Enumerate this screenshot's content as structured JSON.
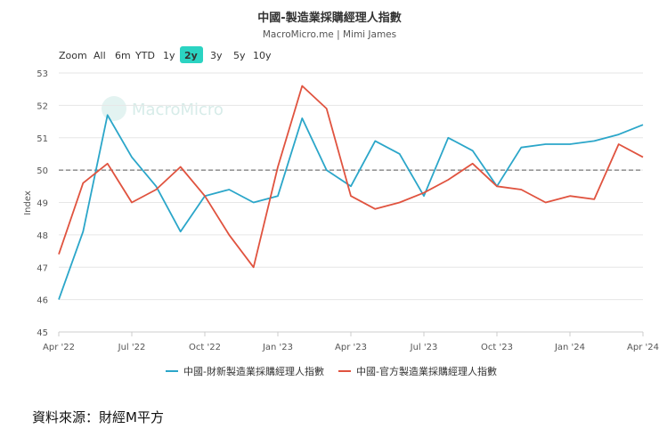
{
  "header": {
    "title": "中國-製造業採購經理人指數",
    "subtitle": "MacroMicro.me | Mimi James"
  },
  "zoom": {
    "label": "Zoom",
    "options": [
      "All",
      "6m",
      "YTD",
      "1y",
      "2y",
      "3y",
      "5y",
      "10y"
    ],
    "selected": "2y",
    "selected_color": "#2bd3c2"
  },
  "watermark": {
    "text": "MacroMicro"
  },
  "source": {
    "text": "資料來源：財經M平方"
  },
  "chart_data": {
    "type": "line",
    "title": "中國-製造業採購經理人指數",
    "subtitle": "MacroMicro.me | Mimi James",
    "ylabel": "Index",
    "xlabel": "",
    "ylim": [
      45,
      53
    ],
    "yticks": [
      "45",
      "46",
      "47",
      "48",
      "49",
      "50",
      "51",
      "52",
      "53"
    ],
    "xticks": [
      "Apr '22",
      "Jul '22",
      "Oct '22",
      "Jan '23",
      "Apr '23",
      "Jul '23",
      "Oct '23",
      "Jan '24",
      "Apr '24"
    ],
    "x": [
      "2022-04",
      "2022-05",
      "2022-06",
      "2022-07",
      "2022-08",
      "2022-09",
      "2022-10",
      "2022-11",
      "2022-12",
      "2023-01",
      "2023-02",
      "2023-03",
      "2023-04",
      "2023-05",
      "2023-06",
      "2023-07",
      "2023-08",
      "2023-09",
      "2023-10",
      "2023-11",
      "2023-12",
      "2024-01",
      "2024-02",
      "2024-03",
      "2024-04"
    ],
    "reference_line": 50,
    "grid": true,
    "legend_position": "bottom",
    "series": [
      {
        "name": "中國-財新製造業採購經理人指數",
        "color": "#2ba6c9",
        "values": [
          46.0,
          48.1,
          51.7,
          50.4,
          49.5,
          48.1,
          49.2,
          49.4,
          49.0,
          49.2,
          51.6,
          50.0,
          49.5,
          50.9,
          50.5,
          49.2,
          51.0,
          50.6,
          49.5,
          50.7,
          50.8,
          50.8,
          50.9,
          51.1,
          51.4
        ]
      },
      {
        "name": "中國-官方製造業採購經理人指數",
        "color": "#e0533f",
        "values": [
          47.4,
          49.6,
          50.2,
          49.0,
          49.4,
          50.1,
          49.2,
          48.0,
          47.0,
          50.1,
          52.6,
          51.9,
          49.2,
          48.8,
          49.0,
          49.3,
          49.7,
          50.2,
          49.5,
          49.4,
          49.0,
          49.2,
          49.1,
          50.8,
          50.4
        ]
      }
    ]
  }
}
